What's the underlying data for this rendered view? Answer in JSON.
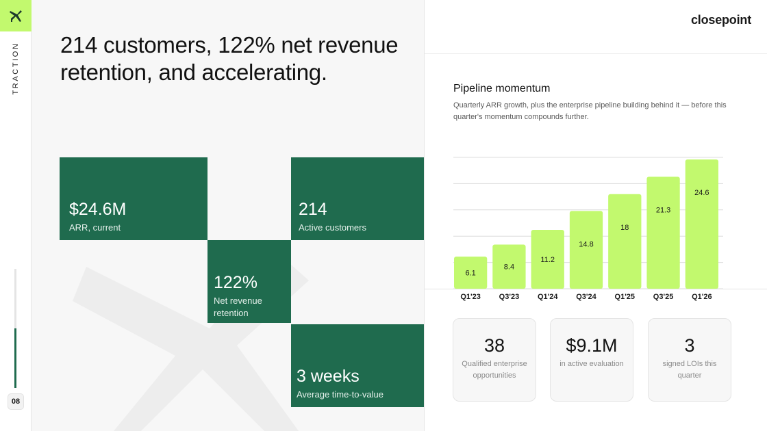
{
  "rail": {
    "section_label": "TRACTION",
    "page_number": "08",
    "progress_fraction": 0.5
  },
  "headline": "214 customers, 122% net revenue retention, and accelerating.",
  "metrics": [
    {
      "value": "$24.6M",
      "label": "ARR, current"
    },
    {
      "value": "214",
      "label": "Active customers"
    },
    {
      "value": "122%",
      "label": "Net revenue retention"
    },
    {
      "value": "3 weeks",
      "label": "Average time-to-value"
    }
  ],
  "brand": "closepoint",
  "chart": {
    "title": "Pipeline momentum",
    "subtitle": "Quarterly ARR growth, plus the enterprise pipeline building behind it — before this quarter's momentum compounds further."
  },
  "chart_data": {
    "type": "bar",
    "categories": [
      "Q1'23",
      "Q3'23",
      "Q1'24",
      "Q3'24",
      "Q1'25",
      "Q3'25",
      "Q1'26"
    ],
    "values": [
      6.1,
      8.4,
      11.2,
      14.8,
      18,
      21.3,
      24.6
    ],
    "ylim": [
      0,
      25
    ],
    "grid": true,
    "xlabel": "",
    "ylabel": ""
  },
  "stats": [
    {
      "value": "38",
      "label": "Qualified enterprise opportunities"
    },
    {
      "value": "$9.1M",
      "label": "in active evaluation"
    },
    {
      "value": "3",
      "label": "signed LOIs this quarter"
    }
  ],
  "colors": {
    "accent_green": "#1f6b4e",
    "lime": "#c2f96e",
    "bar_fill": "#c2f96e"
  }
}
